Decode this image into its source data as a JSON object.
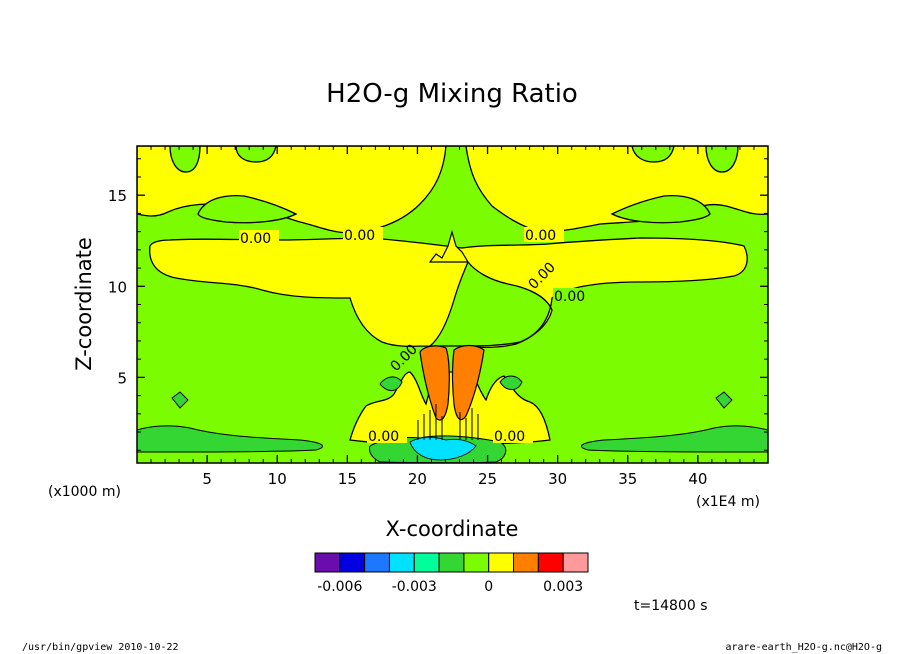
{
  "chart_data": {
    "type": "heatmap",
    "title": "H2O-g Mixing Ratio",
    "xlabel": "X-coordinate",
    "ylabel": "Z-coordinate",
    "x_units": "(x1E4 m)",
    "y_units": "(x1000 m)",
    "x_ticks": [
      "5",
      "10",
      "15",
      "20",
      "25",
      "30",
      "35",
      "40"
    ],
    "y_ticks": [
      "5",
      "10",
      "15"
    ],
    "xlim": [
      0,
      45
    ],
    "ylim": [
      0.3,
      17.7
    ],
    "contour_labels": [
      "0.00",
      "0.00",
      "0.00",
      "0.00",
      "0.00",
      "0.00",
      "0.00",
      "0.00"
    ],
    "colorbar": {
      "tick_labels": [
        "-0.006",
        "-0.003",
        "0",
        "0.003"
      ],
      "colors": [
        "#6a0dad",
        "#0000e0",
        "#1e78ff",
        "#00e0ff",
        "#00ff9a",
        "#33d633",
        "#7cfc00",
        "#ffff00",
        "#ff8000",
        "#ff0000",
        "#ff9a9a"
      ]
    },
    "time_label": "t=14800 s",
    "footer_left": "/usr/bin/gpview   2010-10-22",
    "footer_right": "arare-earth_H2O-g.nc@H2O-g"
  }
}
